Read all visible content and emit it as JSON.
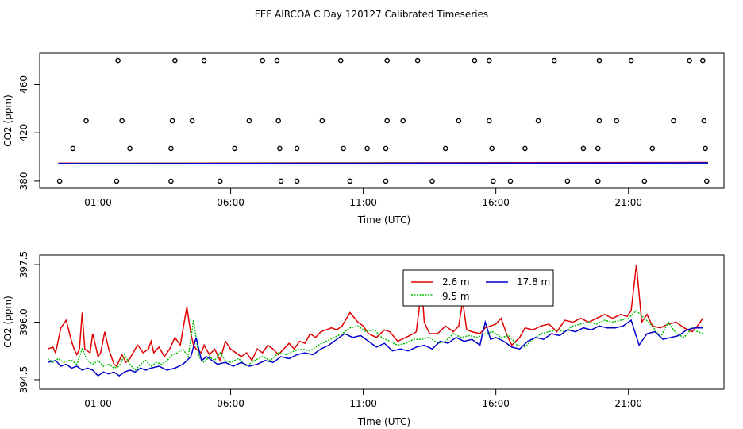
{
  "title": "FEF AIRCOA C  Day 120127  Calibrated Timeseries",
  "chart_data": [
    {
      "type": "line",
      "panel": "top",
      "xlabel": "Time (UTC)",
      "ylabel": "CO2 (ppm)",
      "x_unit": "hours UTC",
      "xlim": [
        -1.2,
        24.6
      ],
      "ylim": [
        374,
        486
      ],
      "x_ticks": [
        1,
        6,
        11,
        16,
        21
      ],
      "x_tick_labels": [
        "01:00",
        "06:00",
        "11:00",
        "16:00",
        "21:00"
      ],
      "y_ticks": [
        380,
        420,
        460
      ],
      "y_tick_labels": [
        "380",
        "420",
        "460"
      ],
      "lines": [
        {
          "name": "2.6 m",
          "color": "#e00000",
          "x": [
            -0.5,
            24
          ],
          "y": [
            394.8,
            395.4
          ]
        },
        {
          "name": "9.5 m",
          "color": "#00c000",
          "x": [
            -0.5,
            24
          ],
          "y": [
            394.6,
            395.0
          ]
        },
        {
          "name": "17.8 m",
          "color": "#0000e0",
          "x": [
            -0.5,
            24
          ],
          "y": [
            394.5,
            395.0
          ]
        }
      ],
      "points": {
        "marker": "open-circle",
        "x": [
          1.75,
          3.9,
          5.0,
          7.2,
          7.75,
          10.15,
          11.9,
          13.05,
          15.2,
          15.75,
          18.2,
          19.9,
          21.1,
          23.3,
          23.8,
          0.55,
          1.9,
          3.8,
          4.55,
          6.7,
          7.8,
          9.45,
          11.9,
          12.5,
          14.6,
          15.75,
          17.6,
          19.9,
          20.55,
          22.7,
          23.85,
          0.05,
          2.2,
          3.75,
          6.15,
          7.85,
          8.5,
          10.25,
          11.15,
          11.85,
          14.1,
          15.85,
          17.1,
          19.3,
          19.85,
          21.9,
          23.9,
          -0.45,
          1.7,
          3.75,
          5.6,
          7.9,
          8.5,
          10.5,
          11.85,
          13.6,
          15.9,
          16.55,
          18.7,
          19.85,
          21.6,
          23.95
        ],
        "y": [
          480,
          480,
          480,
          480,
          480,
          480,
          480,
          480,
          480,
          480,
          480,
          480,
          480,
          480,
          480,
          430,
          430,
          430,
          430,
          430,
          430,
          430,
          430,
          430,
          430,
          430,
          430,
          430,
          430,
          430,
          430,
          407,
          407,
          407,
          407,
          407,
          407,
          407,
          407,
          407,
          407,
          407,
          407,
          407,
          407,
          407,
          407,
          380,
          380,
          380,
          380,
          380,
          380,
          380,
          380,
          380,
          380,
          380,
          380,
          380,
          380,
          380
        ]
      }
    },
    {
      "type": "line",
      "panel": "bottom",
      "xlabel": "Time (UTC)",
      "ylabel": "CO2 (ppm)",
      "x_unit": "hours UTC",
      "xlim": [
        -1.2,
        24.6
      ],
      "ylim": [
        394.25,
        397.75
      ],
      "x_ticks": [
        1,
        6,
        11,
        16,
        21
      ],
      "x_tick_labels": [
        "01:00",
        "06:00",
        "11:00",
        "16:00",
        "21:00"
      ],
      "y_ticks": [
        394.5,
        396.0,
        397.5
      ],
      "y_tick_labels": [
        "394.5",
        "396.0",
        "397.5"
      ],
      "legend": {
        "placement": "top-center",
        "entries": [
          "2.6 m",
          "9.5 m",
          "17.8 m"
        ]
      },
      "series": [
        {
          "name": "2.6 m",
          "color": "#e00000",
          "x": [
            -0.9,
            -0.7,
            -0.6,
            -0.4,
            -0.2,
            0.0,
            0.1,
            0.2,
            0.3,
            0.4,
            0.5,
            0.7,
            0.8,
            0.9,
            1.0,
            1.1,
            1.25,
            1.4,
            1.5,
            1.6,
            1.7,
            1.9,
            2.05,
            2.2,
            2.4,
            2.5,
            2.7,
            2.9,
            3.0,
            3.1,
            3.3,
            3.5,
            3.6,
            3.7,
            3.9,
            4.1,
            4.2,
            4.35,
            4.5,
            4.6,
            4.7,
            4.9,
            5.0,
            5.2,
            5.4,
            5.6,
            5.8,
            6.0,
            6.2,
            6.4,
            6.6,
            6.8,
            7.0,
            7.2,
            7.4,
            7.6,
            7.8,
            8.0,
            8.2,
            8.4,
            8.6,
            8.8,
            9.0,
            9.2,
            9.4,
            9.6,
            9.8,
            10.0,
            10.2,
            10.5,
            10.8,
            11.0,
            11.2,
            11.5,
            11.8,
            12.0,
            12.3,
            12.6,
            12.9,
            13.0,
            13.1,
            13.2,
            13.3,
            13.5,
            13.8,
            14.1,
            14.4,
            14.6,
            14.75,
            14.9,
            15.1,
            15.4,
            15.6,
            15.8,
            16.0,
            16.2,
            16.4,
            16.6,
            16.9,
            17.1,
            17.4,
            17.7,
            18.0,
            18.3,
            18.6,
            18.9,
            19.2,
            19.5,
            19.8,
            20.1,
            20.4,
            20.7,
            20.95,
            21.1,
            21.3,
            21.5,
            21.7,
            21.9,
            22.2,
            22.5,
            22.8,
            23.1,
            23.4,
            23.6,
            23.8
          ],
          "y": [
            395.3,
            395.35,
            395.2,
            395.85,
            396.05,
            395.5,
            395.3,
            395.15,
            395.3,
            396.25,
            395.3,
            395.2,
            395.7,
            395.4,
            395.1,
            395.2,
            395.75,
            395.3,
            395.1,
            394.9,
            394.85,
            395.15,
            394.95,
            395.05,
            395.3,
            395.4,
            395.2,
            395.3,
            395.5,
            395.2,
            395.35,
            395.1,
            395.2,
            395.3,
            395.6,
            395.4,
            395.8,
            396.4,
            395.7,
            395.4,
            395.3,
            395.2,
            395.4,
            395.15,
            395.3,
            395.0,
            395.5,
            395.3,
            395.2,
            395.1,
            395.2,
            395.0,
            395.3,
            395.2,
            395.4,
            395.3,
            395.15,
            395.3,
            395.45,
            395.3,
            395.5,
            395.45,
            395.7,
            395.6,
            395.75,
            395.8,
            395.85,
            395.8,
            395.9,
            396.25,
            396.0,
            395.9,
            395.7,
            395.6,
            395.8,
            395.75,
            395.5,
            395.6,
            395.7,
            395.75,
            396.3,
            397.0,
            396.0,
            395.7,
            395.7,
            395.9,
            395.75,
            395.9,
            396.55,
            395.8,
            395.75,
            395.7,
            395.85,
            395.9,
            395.95,
            396.1,
            395.7,
            395.4,
            395.6,
            395.85,
            395.8,
            395.9,
            395.95,
            395.75,
            396.05,
            396.0,
            396.1,
            396.0,
            396.1,
            396.2,
            396.1,
            396.2,
            396.15,
            396.3,
            397.5,
            396.0,
            396.2,
            395.9,
            395.85,
            395.95,
            396.0,
            395.85,
            395.75,
            395.9,
            396.1
          ]
        },
        {
          "name": "9.5 m",
          "color": "#00c000",
          "x": [
            -0.9,
            -0.7,
            -0.5,
            -0.3,
            -0.1,
            0.0,
            0.2,
            0.4,
            0.6,
            0.8,
            1.0,
            1.2,
            1.4,
            1.6,
            1.8,
            2.0,
            2.2,
            2.4,
            2.6,
            2.8,
            3.0,
            3.2,
            3.4,
            3.6,
            3.8,
            4.0,
            4.2,
            4.4,
            4.6,
            4.8,
            5.0,
            5.2,
            5.4,
            5.6,
            5.8,
            6.0,
            6.3,
            6.6,
            6.9,
            7.2,
            7.5,
            7.8,
            8.1,
            8.4,
            8.7,
            9.0,
            9.3,
            9.6,
            9.9,
            10.2,
            10.5,
            10.8,
            11.1,
            11.4,
            11.7,
            12.0,
            12.3,
            12.6,
            12.9,
            13.2,
            13.5,
            13.8,
            14.1,
            14.4,
            14.7,
            15.0,
            15.3,
            15.6,
            15.9,
            16.2,
            16.5,
            16.8,
            17.1,
            17.4,
            17.7,
            18.0,
            18.3,
            18.6,
            18.9,
            19.2,
            19.5,
            19.8,
            20.1,
            20.4,
            20.7,
            21.0,
            21.3,
            21.6,
            21.9,
            22.2,
            22.5,
            22.8,
            23.1,
            23.4,
            23.6,
            23.8
          ],
          "y": [
            395.05,
            394.95,
            395.05,
            394.95,
            395.0,
            395.0,
            394.9,
            395.3,
            395.0,
            394.9,
            395.0,
            394.85,
            394.9,
            394.8,
            394.85,
            395.15,
            394.9,
            394.75,
            394.9,
            395.0,
            394.85,
            394.95,
            394.9,
            395.0,
            395.15,
            395.2,
            395.3,
            395.1,
            396.05,
            395.1,
            394.95,
            395.1,
            395.0,
            395.2,
            395.0,
            394.95,
            395.05,
            394.85,
            395.0,
            395.1,
            395.0,
            395.2,
            395.15,
            395.25,
            395.3,
            395.25,
            395.4,
            395.5,
            395.6,
            395.7,
            395.85,
            395.9,
            395.75,
            395.8,
            395.6,
            395.5,
            395.4,
            395.45,
            395.55,
            395.55,
            395.6,
            395.45,
            395.5,
            395.7,
            395.6,
            395.65,
            395.6,
            395.7,
            395.75,
            395.6,
            395.65,
            395.4,
            395.35,
            395.55,
            395.7,
            395.75,
            395.8,
            395.75,
            395.9,
            395.95,
            396.0,
            395.95,
            396.05,
            396.0,
            396.05,
            396.1,
            396.3,
            396.1,
            395.9,
            395.6,
            396.0,
            395.7,
            395.6,
            395.85,
            395.75,
            395.7
          ]
        },
        {
          "name": "17.8 m",
          "color": "#0000c8",
          "x": [
            -0.9,
            -0.6,
            -0.4,
            -0.2,
            0.0,
            0.2,
            0.4,
            0.6,
            0.8,
            1.0,
            1.2,
            1.4,
            1.6,
            1.8,
            2.0,
            2.2,
            2.4,
            2.6,
            2.8,
            3.0,
            3.3,
            3.6,
            3.9,
            4.2,
            4.5,
            4.7,
            4.9,
            5.1,
            5.3,
            5.5,
            5.8,
            6.1,
            6.4,
            6.7,
            7.0,
            7.3,
            7.6,
            7.9,
            8.2,
            8.5,
            8.8,
            9.1,
            9.4,
            9.7,
            10.0,
            10.3,
            10.6,
            10.9,
            11.2,
            11.5,
            11.8,
            12.1,
            12.4,
            12.7,
            13.0,
            13.3,
            13.6,
            13.9,
            14.2,
            14.5,
            14.8,
            15.1,
            15.4,
            15.6,
            15.8,
            16.0,
            16.3,
            16.6,
            16.9,
            17.2,
            17.5,
            17.8,
            18.1,
            18.4,
            18.7,
            19.0,
            19.3,
            19.6,
            19.9,
            20.2,
            20.5,
            20.8,
            21.1,
            21.4,
            21.7,
            22.0,
            22.3,
            22.6,
            22.9,
            23.2,
            23.5,
            23.8
          ],
          "y": [
            394.95,
            395.0,
            394.85,
            394.9,
            394.8,
            394.85,
            394.75,
            394.8,
            394.75,
            394.6,
            394.7,
            394.65,
            394.7,
            394.6,
            394.7,
            394.75,
            394.7,
            394.8,
            394.75,
            394.8,
            394.85,
            394.75,
            394.8,
            394.9,
            395.1,
            395.6,
            395.0,
            395.1,
            395.0,
            394.9,
            394.95,
            394.85,
            394.95,
            394.85,
            394.9,
            395.0,
            394.95,
            395.1,
            395.05,
            395.15,
            395.2,
            395.15,
            395.3,
            395.4,
            395.55,
            395.7,
            395.6,
            395.65,
            395.5,
            395.35,
            395.45,
            395.25,
            395.3,
            395.25,
            395.35,
            395.4,
            395.3,
            395.5,
            395.45,
            395.6,
            395.5,
            395.55,
            395.4,
            396.0,
            395.55,
            395.6,
            395.5,
            395.35,
            395.3,
            395.5,
            395.6,
            395.55,
            395.7,
            395.65,
            395.8,
            395.75,
            395.85,
            395.8,
            395.9,
            395.85,
            395.85,
            395.9,
            396.05,
            395.4,
            395.7,
            395.75,
            395.55,
            395.6,
            395.65,
            395.8,
            395.85,
            395.85
          ]
        }
      ]
    }
  ]
}
